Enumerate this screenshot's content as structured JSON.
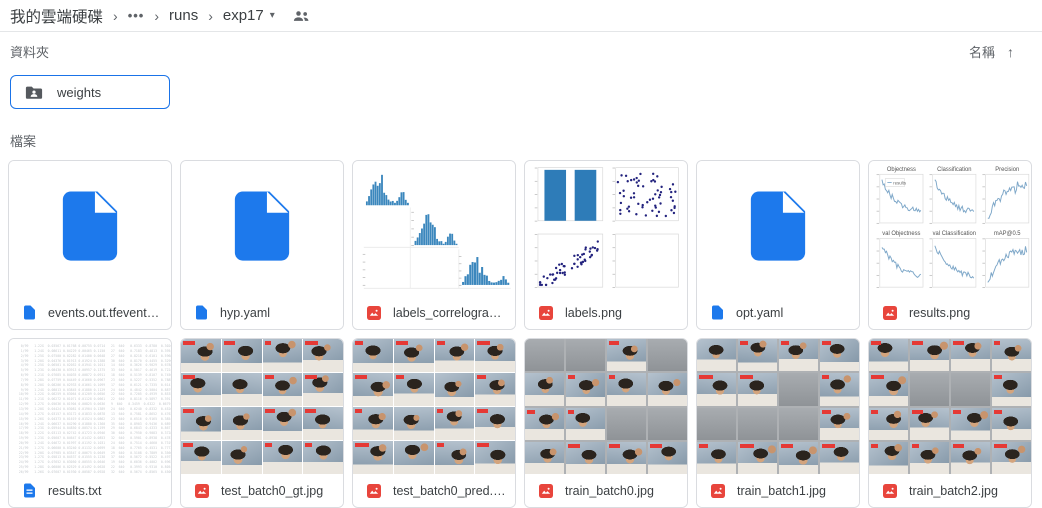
{
  "header": {
    "breadcrumb": [
      "我的雲端硬碟",
      "•••",
      "runs",
      "exp17"
    ]
  },
  "sections": {
    "folders_label": "資料夾",
    "files_label": "檔案",
    "sort_label": "名稱",
    "sort_direction": "ascending"
  },
  "folders": [
    {
      "name": "weights",
      "selected": true,
      "icon": "shared-folder-icon"
    }
  ],
  "files": [
    {
      "name": "events.out.tfevents.16...",
      "type": "file",
      "thumb": "bigfile"
    },
    {
      "name": "hyp.yaml",
      "type": "file",
      "thumb": "bigfile"
    },
    {
      "name": "labels_correlogram.png",
      "type": "image",
      "thumb": "correlogram"
    },
    {
      "name": "labels.png",
      "type": "image",
      "thumb": "labels"
    },
    {
      "name": "opt.yaml",
      "type": "file",
      "thumb": "bigfile"
    },
    {
      "name": "results.png",
      "type": "image",
      "thumb": "results"
    },
    {
      "name": "results.txt",
      "type": "text",
      "thumb": "textpreview"
    },
    {
      "name": "test_batch0_gt.jpg",
      "type": "image",
      "thumb": "photos",
      "variant": "grid"
    },
    {
      "name": "test_batch0_pred.jpg",
      "type": "image",
      "thumb": "photos",
      "variant": "grid"
    },
    {
      "name": "train_batch0.jpg",
      "type": "image",
      "thumb": "photos",
      "variant": "mosaic"
    },
    {
      "name": "train_batch1.jpg",
      "type": "image",
      "thumb": "photos",
      "variant": "mosaic"
    },
    {
      "name": "train_batch2.jpg",
      "type": "image",
      "thumb": "photos",
      "variant": "mosaic"
    }
  ],
  "results_plot": {
    "titles": [
      [
        "Objectness",
        "Classification",
        "Precision"
      ],
      [
        "val Objectness",
        "val Classification",
        "mAP@0.5"
      ]
    ],
    "legend": "results"
  },
  "colors": {
    "accent_blue": "#1a73e8",
    "doc_icon_blue": "#1d79ec",
    "image_icon_red": "#e8453c",
    "chart_blue": "#2e7cb8",
    "scatter_navy": "#23237e",
    "line_lightblue": "#7fa8c9",
    "border_gray": "#dadce0",
    "text_gray": "#5f6368"
  }
}
